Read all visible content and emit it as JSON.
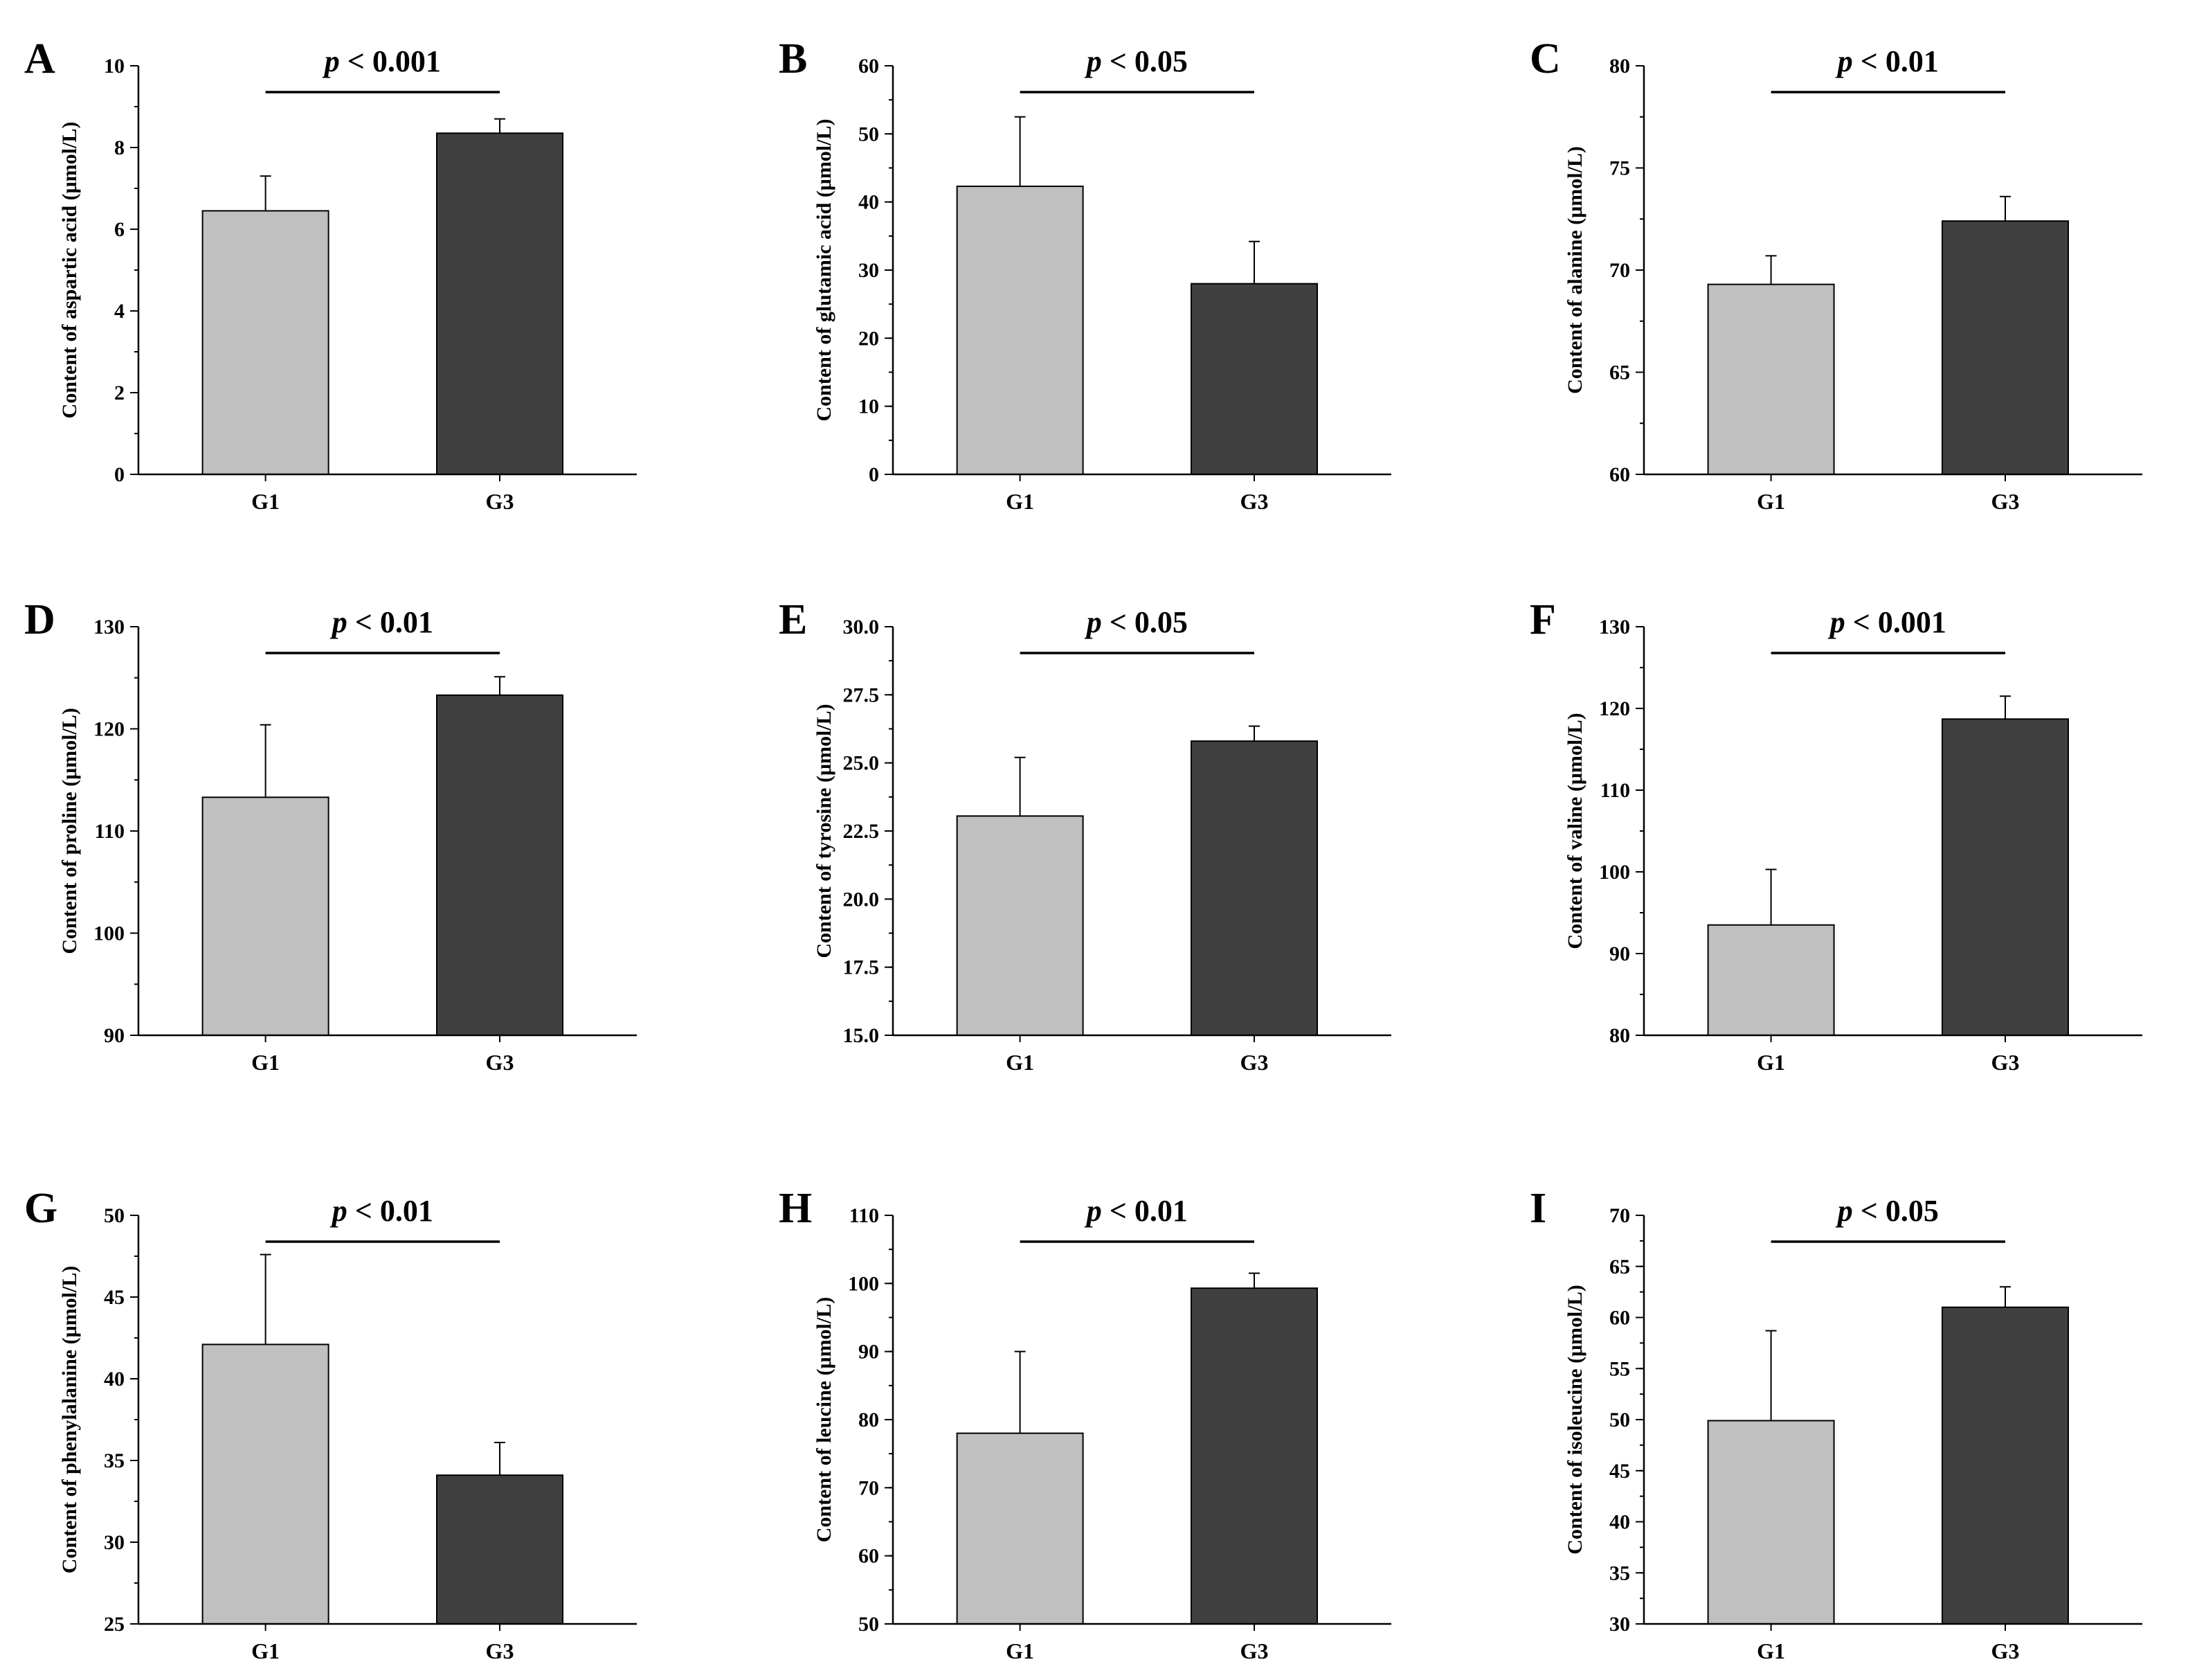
{
  "figure": {
    "bar_colors": {
      "G1": "#c0c0c0",
      "G3": "#404040"
    }
  },
  "chart_data": [
    {
      "panel": "A",
      "type": "bar",
      "categories": [
        "G1",
        "G3"
      ],
      "values": [
        6.45,
        8.35
      ],
      "errors": [
        0.85,
        0.35
      ],
      "ylabel": "Content of aspartic acid (μmol/L)",
      "ylim": [
        0,
        10
      ],
      "yticks": [
        "0",
        "2",
        "4",
        "6",
        "8",
        "10"
      ],
      "minor_step": 1,
      "significance": "< 0.001"
    },
    {
      "panel": "B",
      "type": "bar",
      "categories": [
        "G1",
        "G3"
      ],
      "values": [
        42.3,
        28.0
      ],
      "errors": [
        10.2,
        6.2
      ],
      "ylabel": "Content of glutamic acid (μmol/L)",
      "ylim": [
        0,
        60
      ],
      "yticks": [
        "0",
        "10",
        "20",
        "30",
        "40",
        "50",
        "60"
      ],
      "minor_step": 5,
      "significance": "< 0.05"
    },
    {
      "panel": "C",
      "type": "bar",
      "categories": [
        "G1",
        "G3"
      ],
      "values": [
        69.3,
        72.4
      ],
      "errors": [
        1.4,
        1.2
      ],
      "ylabel": "Content of alanine (μmol/L)",
      "ylim": [
        60,
        80
      ],
      "yticks": [
        "60",
        "65",
        "70",
        "75",
        "80"
      ],
      "minor_step": 2.5,
      "significance": "< 0.01"
    },
    {
      "panel": "D",
      "type": "bar",
      "categories": [
        "G1",
        "G3"
      ],
      "values": [
        113.3,
        123.3
      ],
      "errors": [
        7.1,
        1.8
      ],
      "ylabel": "Content of proline (μmol/L)",
      "ylim": [
        90,
        130
      ],
      "yticks": [
        "90",
        "100",
        "110",
        "120",
        "130"
      ],
      "minor_step": 5,
      "significance": "< 0.01"
    },
    {
      "panel": "E",
      "type": "bar",
      "categories": [
        "G1",
        "G3"
      ],
      "values": [
        23.05,
        25.8
      ],
      "errors": [
        2.15,
        0.55
      ],
      "ylabel": "Content of tyrosine (μmol/L)",
      "ylim": [
        15,
        30
      ],
      "yticks": [
        "15.0",
        "17.5",
        "20.0",
        "22.5",
        "25.0",
        "27.5",
        "30.0"
      ],
      "minor_step": 1.25,
      "significance": "< 0.05"
    },
    {
      "panel": "F",
      "type": "bar",
      "categories": [
        "G1",
        "G3"
      ],
      "values": [
        93.5,
        118.7
      ],
      "errors": [
        6.8,
        2.8
      ],
      "ylabel": "Content of valine (μmol/L)",
      "ylim": [
        80,
        130
      ],
      "yticks": [
        "80",
        "90",
        "100",
        "110",
        "120",
        "130"
      ],
      "minor_step": 5,
      "significance": "< 0.001"
    },
    {
      "panel": "G",
      "type": "bar",
      "categories": [
        "G1",
        "G3"
      ],
      "values": [
        42.1,
        34.1
      ],
      "errors": [
        5.5,
        2.0
      ],
      "ylabel": "Content of phenylalanine (μmol/L)",
      "ylim": [
        25,
        50
      ],
      "yticks": [
        "25",
        "30",
        "35",
        "40",
        "45",
        "50"
      ],
      "minor_step": 2.5,
      "significance": "< 0.01"
    },
    {
      "panel": "H",
      "type": "bar",
      "categories": [
        "G1",
        "G3"
      ],
      "values": [
        78.0,
        99.3
      ],
      "errors": [
        12.0,
        2.2
      ],
      "ylabel": "Content of leucine (μmol/L)",
      "ylim": [
        50,
        110
      ],
      "yticks": [
        "50",
        "60",
        "70",
        "80",
        "90",
        "100",
        "110"
      ],
      "minor_step": 5,
      "significance": "< 0.01"
    },
    {
      "panel": "I",
      "type": "bar",
      "categories": [
        "G1",
        "G3"
      ],
      "values": [
        49.9,
        61.0
      ],
      "errors": [
        8.8,
        2.0
      ],
      "ylabel": "Content of isoleucine (μmol/L)",
      "ylim": [
        30,
        70
      ],
      "yticks": [
        "30",
        "35",
        "40",
        "45",
        "50",
        "55",
        "60",
        "65",
        "70"
      ],
      "minor_step": 2.5,
      "significance": "< 0.05"
    }
  ]
}
